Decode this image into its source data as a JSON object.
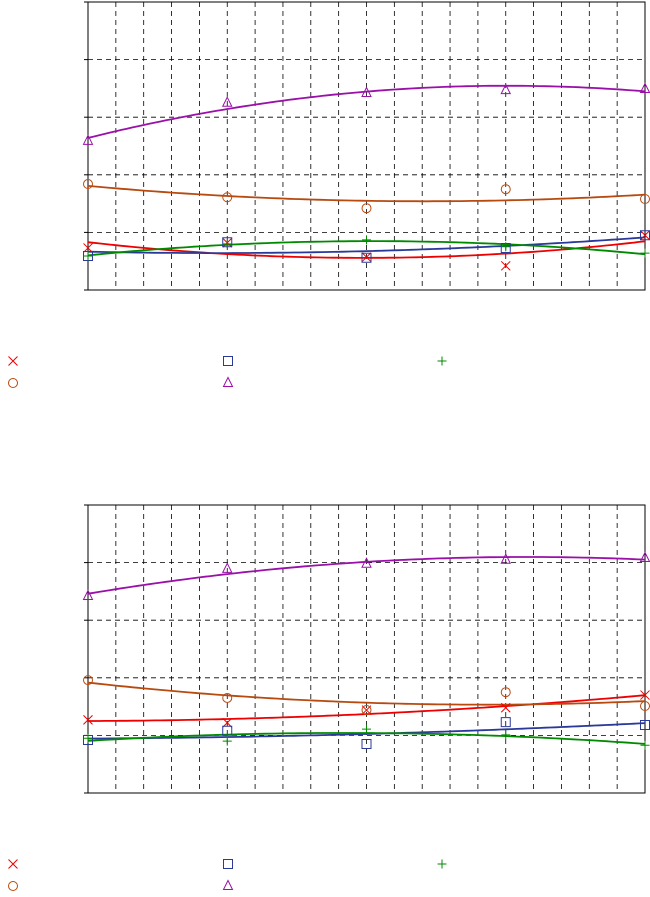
{
  "chart_data": [
    {
      "type": "scatter",
      "fit": "quadratic",
      "grid": true,
      "x": [
        0,
        5,
        10,
        15,
        20
      ],
      "xlim": [
        0,
        20
      ],
      "xticks": [
        0,
        1,
        2,
        3,
        4,
        5,
        6,
        7,
        8,
        9,
        10,
        11,
        12,
        13,
        14,
        15,
        16,
        17,
        18,
        19,
        20
      ],
      "ylim": [
        0,
        5
      ],
      "yticks": [
        0,
        1,
        2,
        3,
        4,
        5
      ],
      "series": [
        {
          "marker": "x",
          "color": "#ee0000",
          "values": [
            0.73,
            0.82,
            0.57,
            0.42,
            0.95
          ]
        },
        {
          "marker": "square",
          "color": "#2a3a9a",
          "values": [
            0.59,
            0.83,
            0.56,
            0.73,
            0.95
          ]
        },
        {
          "marker": "plus",
          "color": "#008a00",
          "values": [
            0.59,
            0.8,
            0.87,
            0.75,
            0.64
          ]
        },
        {
          "marker": "circle",
          "color": "#b84a10",
          "values": [
            1.84,
            1.61,
            1.42,
            1.75,
            1.58
          ]
        },
        {
          "marker": "triangle",
          "color": "#9a10a8",
          "values": [
            2.59,
            3.25,
            3.42,
            3.47,
            3.49
          ]
        }
      ]
    },
    {
      "type": "scatter",
      "fit": "quadratic",
      "grid": true,
      "x": [
        0,
        5,
        10,
        15,
        20
      ],
      "xlim": [
        0,
        20
      ],
      "xticks": [
        0,
        1,
        2,
        3,
        4,
        5,
        6,
        7,
        8,
        9,
        10,
        11,
        12,
        13,
        14,
        15,
        16,
        17,
        18,
        19,
        20
      ],
      "ylim": [
        0,
        5
      ],
      "yticks": [
        0,
        1,
        2,
        3,
        4,
        5
      ],
      "series": [
        {
          "marker": "x",
          "color": "#ee0000",
          "values": [
            1.27,
            1.22,
            1.44,
            1.48,
            1.7
          ]
        },
        {
          "marker": "square",
          "color": "#2a3a9a",
          "values": [
            0.92,
            1.08,
            0.85,
            1.23,
            1.18
          ]
        },
        {
          "marker": "plus",
          "color": "#008a00",
          "values": [
            0.95,
            0.9,
            1.11,
            1.01,
            0.83
          ]
        },
        {
          "marker": "circle",
          "color": "#b84a10",
          "values": [
            1.96,
            1.65,
            1.44,
            1.75,
            1.51
          ]
        },
        {
          "marker": "triangle",
          "color": "#9a10a8",
          "values": [
            3.42,
            3.89,
            3.98,
            4.05,
            4.08
          ]
        }
      ]
    }
  ]
}
